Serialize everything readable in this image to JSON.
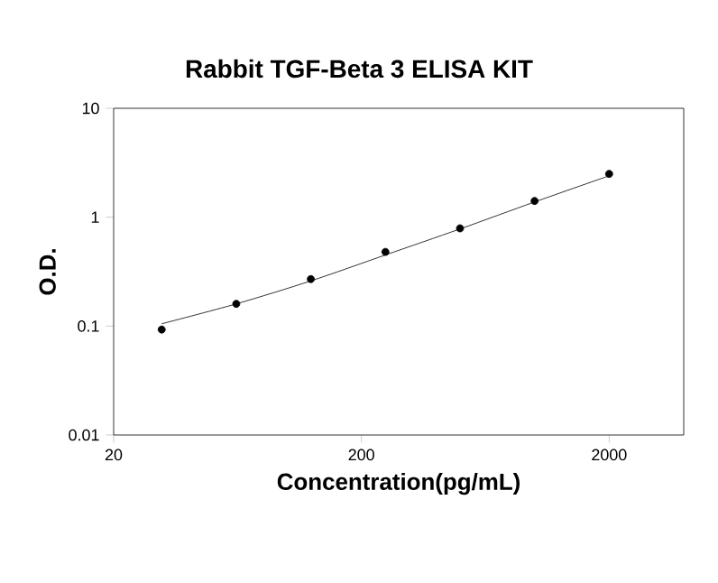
{
  "chart_data": {
    "type": "scatter",
    "title": "Rabbit TGF-Beta 3 ELISA KIT",
    "xlabel": "Concentration(pg/mL)",
    "ylabel": "O.D.",
    "log": "xy",
    "grid": false,
    "x": [
      31.25,
      62.5,
      125,
      250,
      500,
      1000,
      2000
    ],
    "xlim": [
      20,
      4000
    ],
    "ylim": [
      0.01,
      10
    ],
    "xticks": [
      20,
      200,
      2000
    ],
    "yticks": [
      0.01,
      0.1,
      1,
      10
    ],
    "series": [
      {
        "color": "#000000",
        "marker": "circle",
        "values": [
          0.093,
          0.16,
          0.27,
          0.48,
          0.79,
          1.41,
          2.5
        ]
      },
      {
        "type": "line",
        "color": "#000000",
        "marker": "none",
        "x": [
          31.25,
          62.5,
          125,
          250,
          500,
          1000,
          2000
        ],
        "values": [
          0.105,
          0.16,
          0.26,
          0.45,
          0.78,
          1.38,
          2.4
        ]
      }
    ]
  }
}
